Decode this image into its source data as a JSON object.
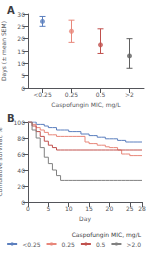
{
  "chart_data": [
    {
      "type": "scatter",
      "title": "A",
      "categories": [
        "<0.25",
        "0.25",
        "0.5",
        ">2"
      ],
      "values": [
        27.0,
        23.0,
        17.5,
        13.0
      ],
      "error_upper": [
        2.0,
        4.5,
        6.5,
        7.0
      ],
      "error_lower": [
        2.0,
        4.5,
        3.5,
        5.0
      ],
      "colors": [
        "#5b7fbe",
        "#e8877a",
        "#c0504d",
        "#606060"
      ],
      "xlabel": "Caspofungin MIC, mg/L",
      "ylabel": "Days (± mean SEM)",
      "ylim": [
        0,
        30
      ],
      "yticks": [
        0,
        5,
        10,
        15,
        20,
        25,
        30
      ],
      "grid": false
    },
    {
      "type": "line",
      "title": "B",
      "x": [
        0,
        1,
        2,
        3,
        4,
        5,
        6,
        7,
        8,
        9,
        10,
        11,
        12,
        13,
        14,
        15,
        16,
        17,
        18,
        19,
        20,
        21,
        22,
        23,
        24,
        25,
        26,
        27,
        28
      ],
      "series": [
        {
          "name": "<0.25",
          "color": "#5b7fbe",
          "values": [
            100,
            100,
            97,
            97,
            95,
            93,
            93,
            90,
            90,
            90,
            88,
            88,
            88,
            85,
            85,
            83,
            83,
            81,
            81,
            79,
            79,
            79,
            77,
            77,
            75,
            75,
            75,
            75,
            75
          ]
        },
        {
          "name": "0.25",
          "color": "#e8877a",
          "values": [
            100,
            97,
            93,
            90,
            87,
            84,
            84,
            82,
            82,
            82,
            82,
            82,
            82,
            82,
            75,
            73,
            73,
            71,
            71,
            69,
            68,
            68,
            65,
            60,
            60,
            58,
            58,
            58,
            58
          ]
        },
        {
          "name": "0.5",
          "color": "#c0504d",
          "values": [
            100,
            95,
            88,
            82,
            76,
            71,
            68,
            65,
            65,
            65,
            65,
            65,
            65,
            65,
            65,
            65,
            65,
            65,
            65,
            65,
            65,
            65,
            65,
            65,
            65,
            65,
            65,
            65,
            65
          ]
        },
        {
          "name": ">2.0",
          "color": "#808080",
          "values": [
            100,
            90,
            80,
            68,
            56,
            48,
            40,
            33,
            27,
            27,
            27,
            27,
            27,
            27,
            27,
            27,
            27,
            27,
            27,
            27,
            27,
            27,
            27,
            27,
            27,
            27,
            27,
            27,
            27
          ]
        }
      ],
      "xlabel": "Day",
      "ylabel": "Cumulative survival, %",
      "xlim": [
        0,
        28
      ],
      "xticks": [
        0,
        5,
        10,
        15,
        20,
        25,
        28
      ],
      "ylim": [
        0,
        100
      ],
      "yticks": [
        0,
        20,
        40,
        60,
        80,
        100
      ],
      "line_style": "step",
      "legend": "lower right",
      "legend_title": "Caspofungin MIC, mg/L",
      "grid": false
    }
  ]
}
